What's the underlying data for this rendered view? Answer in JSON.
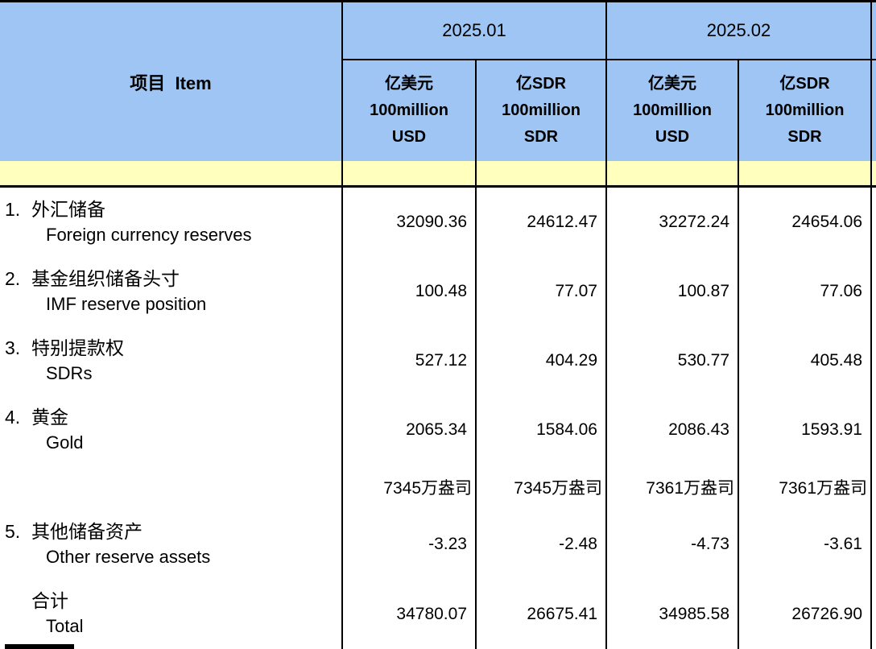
{
  "colors": {
    "header_blue": "#9ec5f3",
    "band_yellow": "#ffffbe",
    "border": "#000000"
  },
  "table": {
    "item_header": "项目  Item",
    "periods": [
      "2025.01",
      "2025.02"
    ],
    "unit_cols": [
      {
        "l1": "亿美元",
        "l2": "100million",
        "l3": "USD"
      },
      {
        "l1": "亿SDR",
        "l2": "100million",
        "l3": "SDR"
      },
      {
        "l1": "亿美元",
        "l2": "100million",
        "l3": "USD"
      },
      {
        "l1": "亿SDR",
        "l2": "100million",
        "l3": "SDR"
      }
    ],
    "rows": [
      {
        "no": "1.",
        "zh": "外汇储备",
        "en": "Foreign currency reserves",
        "values": [
          "32090.36",
          "24612.47",
          "32272.24",
          "24654.06"
        ]
      },
      {
        "no": "2.",
        "zh": "基金组织储备头寸",
        "en": "IMF reserve position",
        "values": [
          "100.48",
          "77.07",
          "100.87",
          "77.06"
        ]
      },
      {
        "no": "3.",
        "zh": "特别提款权",
        "en": "SDRs",
        "values": [
          "527.12",
          "404.29",
          "530.77",
          "405.48"
        ]
      },
      {
        "no": "4.",
        "zh": "黄金",
        "en": "Gold",
        "values": [
          "2065.34",
          "1584.06",
          "2086.43",
          "1593.91"
        ]
      },
      {
        "no": "",
        "zh": "",
        "en": "",
        "values": [
          "7345万盎司",
          "7345万盎司",
          "7361万盎司",
          "7361万盎司"
        ]
      },
      {
        "no": "5.",
        "zh": "其他储备资产",
        "en": "Other reserve assets",
        "values": [
          "-3.23",
          "-2.48",
          "-4.73",
          "-3.61"
        ]
      },
      {
        "no": "",
        "zh": "合计",
        "en": "Total",
        "values": [
          "34780.07",
          "26675.41",
          "34985.58",
          "26726.90"
        ]
      }
    ]
  }
}
